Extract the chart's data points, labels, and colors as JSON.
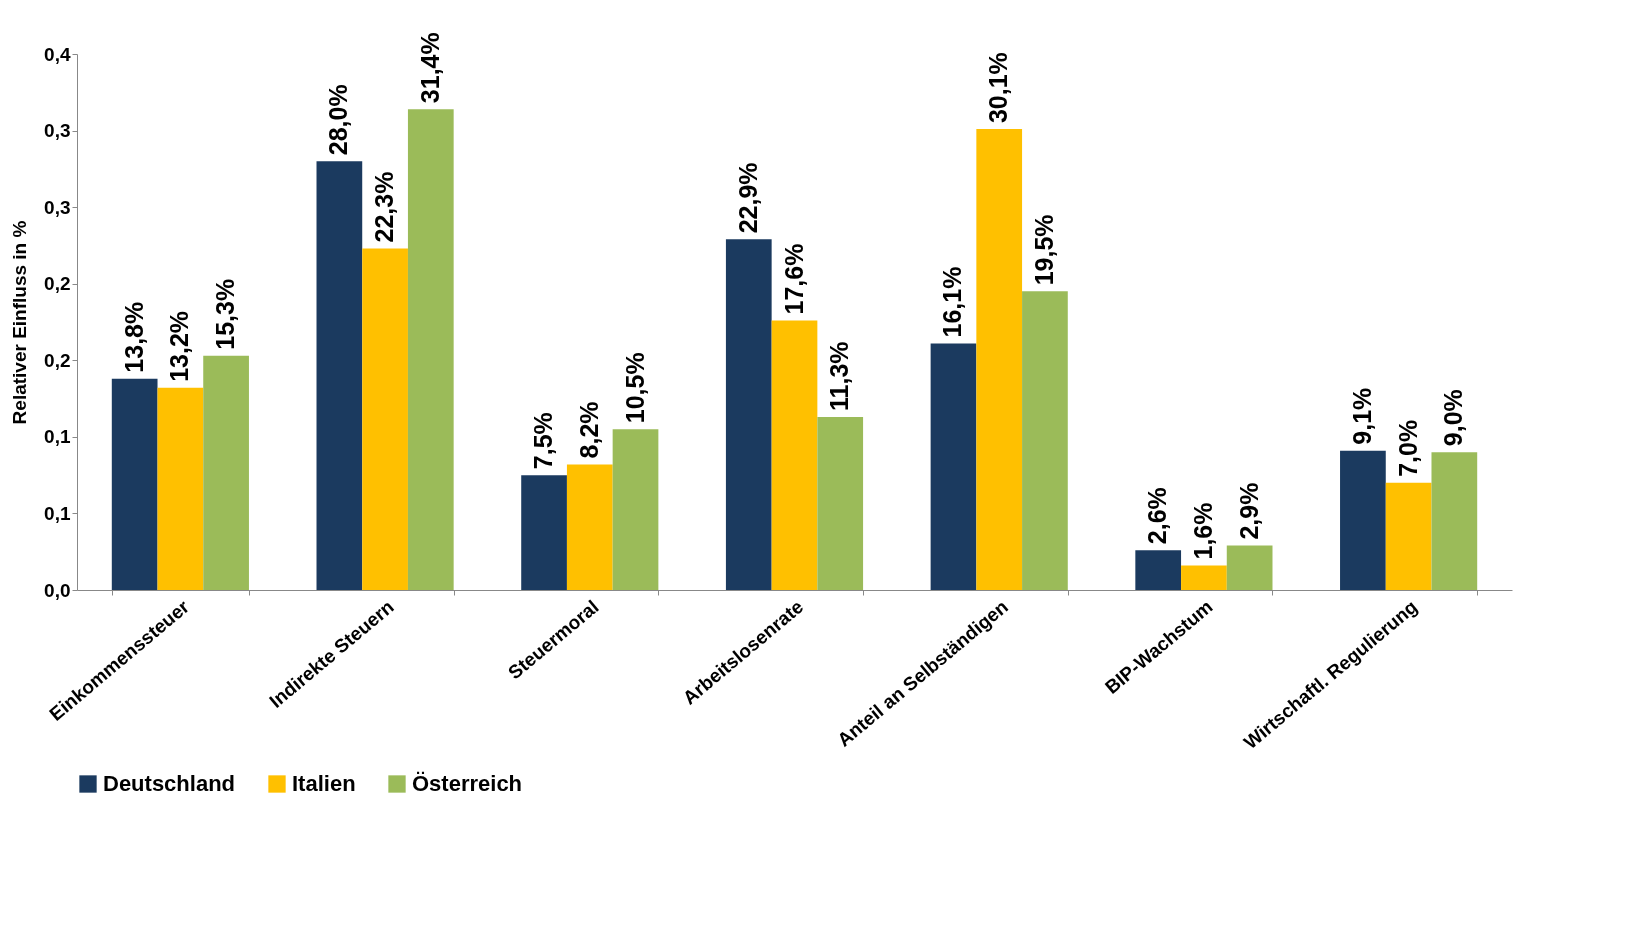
{
  "chart_data": {
    "type": "bar",
    "ylabel": "Relativer Einfluss in %",
    "categories": [
      "Einkommenssteuer",
      "Indirekte Steuern",
      "Steuermoral",
      "Arbeitslosenrate",
      "Anteil an Selbständigen",
      "BIP-Wachstum",
      "Wirtschaftl. Regulierung"
    ],
    "series": [
      {
        "name": "Deutschland",
        "color": "#1b3a5f",
        "values": [
          0.138,
          0.28,
          0.075,
          0.229,
          0.161,
          0.026,
          0.091
        ],
        "value_labels": [
          "13,8%",
          "28,0%",
          "7,5%",
          "22,9%",
          "16,1%",
          "2,6%",
          "9,1%"
        ]
      },
      {
        "name": "Italien",
        "color": "#ffc000",
        "values": [
          0.132,
          0.223,
          0.082,
          0.176,
          0.301,
          0.016,
          0.07
        ],
        "value_labels": [
          "13,2%",
          "22,3%",
          "8,2%",
          "17,6%",
          "30,1%",
          "1,6%",
          "7,0%"
        ]
      },
      {
        "name": "Österreich",
        "color": "#9bbb59",
        "values": [
          0.153,
          0.314,
          0.105,
          0.113,
          0.195,
          0.029,
          0.09
        ],
        "value_labels": [
          "15,3%",
          "31,4%",
          "10,5%",
          "11,3%",
          "19,5%",
          "2,9%",
          "9,0%"
        ]
      }
    ],
    "ylim": [
      0,
      0.35
    ],
    "yticks": [
      {
        "value": 0,
        "label": "0,0"
      },
      {
        "value": 0.05,
        "label": "0,1"
      },
      {
        "value": 0.1,
        "label": "0,1"
      },
      {
        "value": 0.15,
        "label": "0,2"
      },
      {
        "value": 0.2,
        "label": "0,2"
      },
      {
        "value": 0.25,
        "label": "0,3"
      },
      {
        "value": 0.3,
        "label": "0,3"
      },
      {
        "value": 0.35,
        "label": "0,4"
      }
    ],
    "grid": false,
    "legend": "bottom"
  }
}
